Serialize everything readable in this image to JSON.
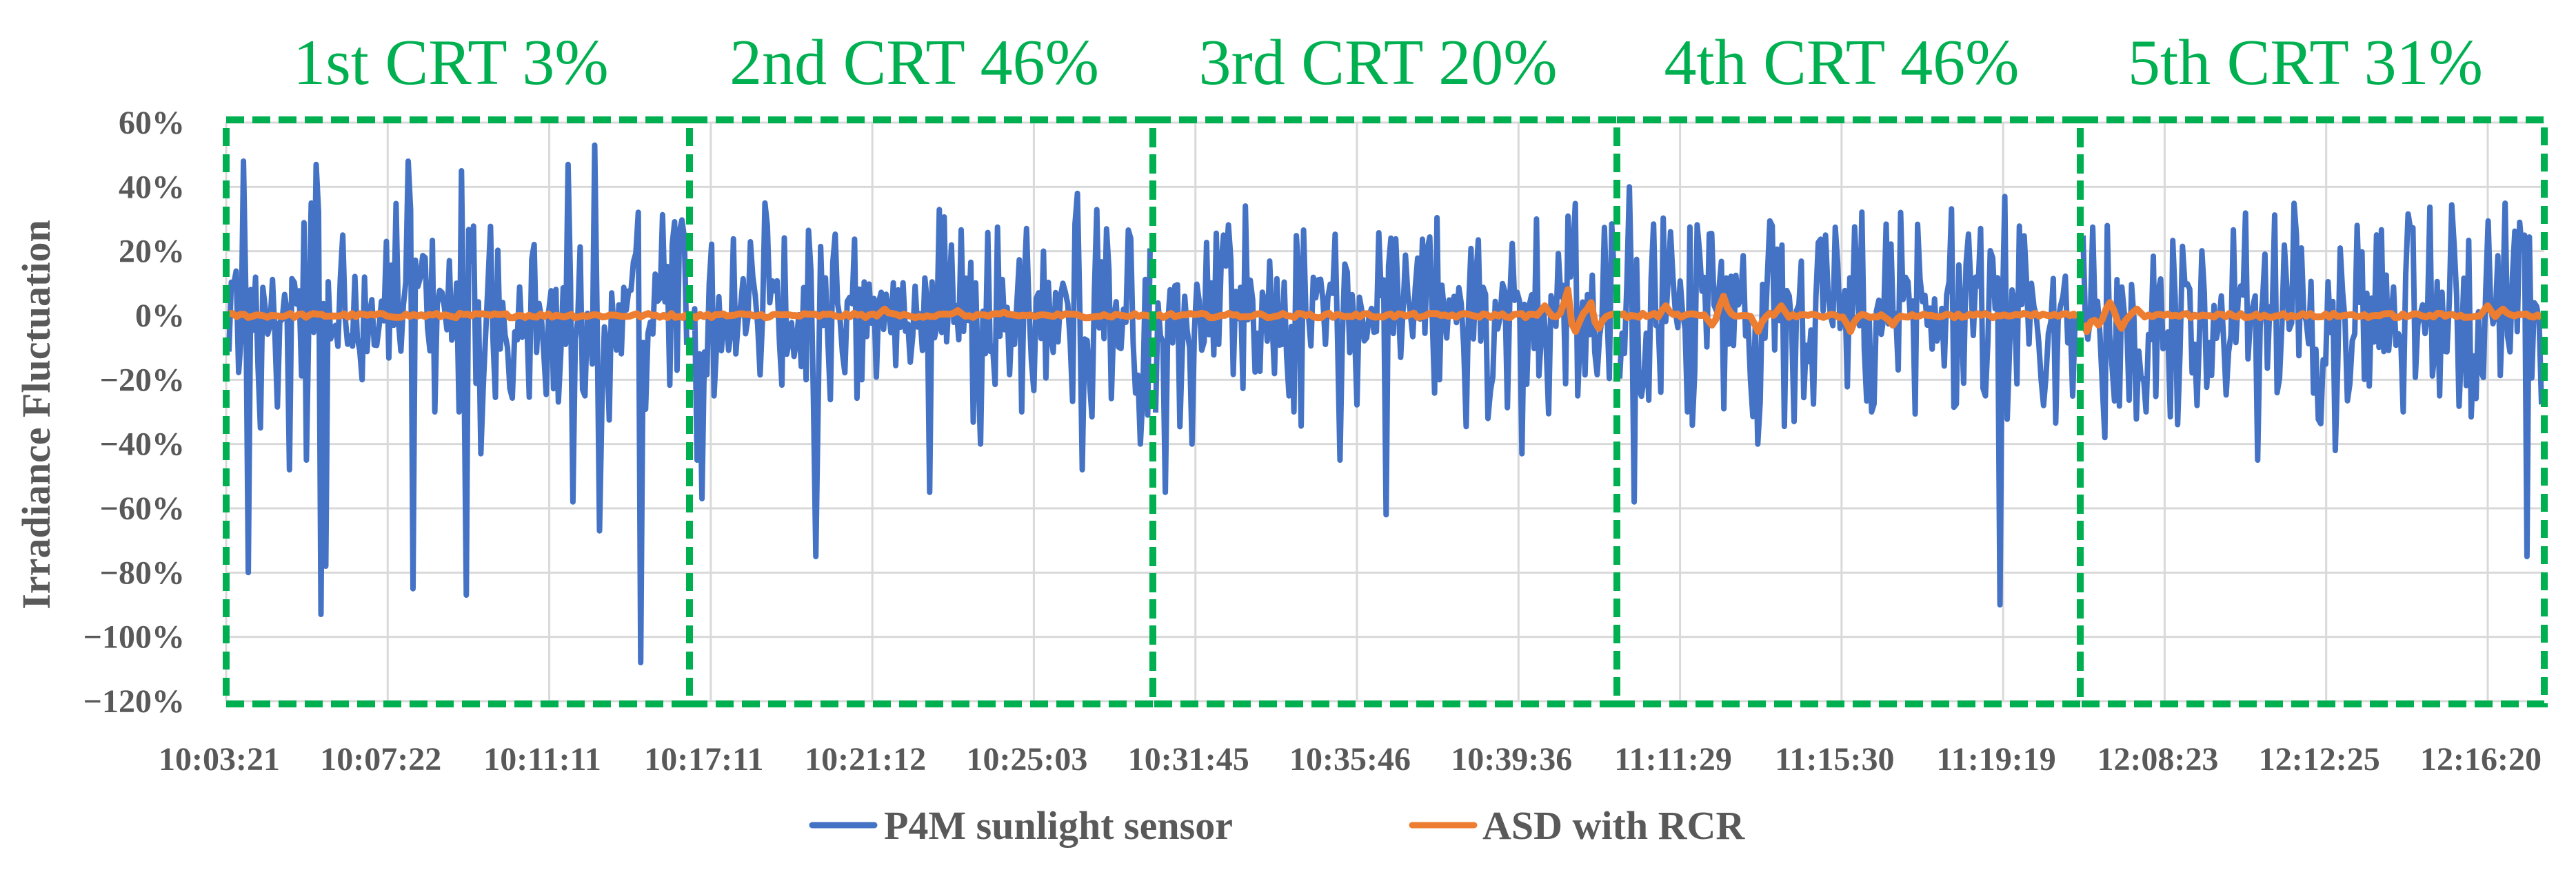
{
  "chart_data": {
    "type": "line",
    "title": "",
    "xlabel": "",
    "ylabel": "Irradiance Fluctuation",
    "ylim": [
      -120,
      60
    ],
    "y_unit": "%",
    "y_ticks": [
      "60%",
      "40%",
      "20%",
      "0%",
      "−20%",
      "−40%",
      "−60%",
      "−80%",
      "−100%",
      "−120%"
    ],
    "y_tick_values": [
      60,
      40,
      20,
      0,
      -20,
      -40,
      -60,
      -80,
      -100,
      -120
    ],
    "x_tick_labels": [
      "10:03:21",
      "10:07:22",
      "10:11:11",
      "10:17:11",
      "10:21:12",
      "10:25:03",
      "10:31:45",
      "10:35:46",
      "10:39:36",
      "11:11:29",
      "11:15:30",
      "11:19:19",
      "12:08:23",
      "12:12:25",
      "12:16:20"
    ],
    "grid": true,
    "legend_position": "bottom",
    "colors": {
      "P4M": "#4472c4",
      "ASD": "#ed7d31",
      "crt_box": "#00b050",
      "grid": "#d9d9d9"
    },
    "segments": [
      {
        "label": "1st CRT 3%",
        "crt_percent": 3,
        "p4m_spikes": [
          [
            0.03,
            48
          ],
          [
            0.04,
            -80
          ],
          [
            0.07,
            -35
          ],
          [
            0.13,
            -48
          ],
          [
            0.17,
            -45
          ],
          [
            0.18,
            35
          ],
          [
            0.19,
            47
          ],
          [
            0.2,
            -93
          ],
          [
            0.21,
            -78
          ],
          [
            0.25,
            25
          ],
          [
            0.39,
            48
          ],
          [
            0.4,
            -85
          ],
          [
            0.43,
            18
          ],
          [
            0.45,
            -30
          ],
          [
            0.5,
            -30
          ],
          [
            0.51,
            45
          ],
          [
            0.52,
            -87
          ],
          [
            0.55,
            -43
          ],
          [
            0.74,
            47
          ],
          [
            0.75,
            -58
          ],
          [
            0.78,
            -25
          ],
          [
            0.8,
            53
          ],
          [
            0.81,
            -67
          ],
          [
            0.9,
            33
          ],
          [
            0.9,
            -108
          ],
          [
            0.97,
            22
          ]
        ],
        "asd_bumps": []
      },
      {
        "label": "2nd CRT 46%",
        "crt_percent": 46,
        "p4m_spikes": [
          [
            0.01,
            -45
          ],
          [
            0.02,
            -57
          ],
          [
            0.05,
            -25
          ],
          [
            0.16,
            35
          ],
          [
            0.25,
            -20
          ],
          [
            0.27,
            30
          ],
          [
            0.27,
            -75
          ],
          [
            0.37,
            -20
          ],
          [
            0.52,
            -55
          ],
          [
            0.63,
            -40
          ],
          [
            0.72,
            -30
          ],
          [
            0.84,
            38
          ],
          [
            0.85,
            -48
          ],
          [
            0.96,
            24
          ],
          [
            0.98,
            -40
          ]
        ],
        "asd_bumps": [
          [
            0.42,
            2
          ],
          [
            0.58,
            1.5
          ],
          [
            0.68,
            1
          ]
        ]
      },
      {
        "label": "3rd CRT 20%",
        "crt_percent": 20,
        "p4m_spikes": [
          [
            0.02,
            -55
          ],
          [
            0.08,
            -40
          ],
          [
            0.15,
            25
          ],
          [
            0.3,
            -30
          ],
          [
            0.4,
            -45
          ],
          [
            0.5,
            -62
          ],
          [
            0.62,
            -20
          ],
          [
            0.8,
            -43
          ],
          [
            0.83,
            30
          ],
          [
            0.92,
            -25
          ]
        ],
        "asd_bumps": [
          [
            0.85,
            3
          ],
          [
            0.9,
            8
          ],
          [
            0.92,
            -5
          ],
          [
            0.95,
            4
          ],
          [
            0.97,
            -4
          ]
        ]
      },
      {
        "label": "4th CRT 46%",
        "crt_percent": 46,
        "p4m_spikes": [
          [
            0.02,
            40
          ],
          [
            0.03,
            -58
          ],
          [
            0.15,
            -30
          ],
          [
            0.3,
            -40
          ],
          [
            0.45,
            25
          ],
          [
            0.55,
            -30
          ],
          [
            0.8,
            -25
          ],
          [
            0.83,
            -90
          ],
          [
            0.84,
            37
          ],
          [
            0.92,
            -20
          ]
        ],
        "asd_bumps": [
          [
            0.1,
            3
          ],
          [
            0.2,
            -3
          ],
          [
            0.23,
            6
          ],
          [
            0.3,
            -5
          ],
          [
            0.35,
            3
          ],
          [
            0.5,
            -5
          ],
          [
            0.6,
            -3
          ]
        ]
      },
      {
        "label": "5th CRT 31%",
        "crt_percent": 31,
        "p4m_spikes": [
          [
            0.05,
            -38
          ],
          [
            0.14,
            -30
          ],
          [
            0.25,
            -28
          ],
          [
            0.38,
            -45
          ],
          [
            0.55,
            -42
          ],
          [
            0.7,
            -30
          ],
          [
            0.78,
            -25
          ],
          [
            0.95,
            29
          ],
          [
            0.97,
            -75
          ]
        ],
        "asd_bumps": [
          [
            0.01,
            -5
          ],
          [
            0.03,
            -3
          ],
          [
            0.06,
            4
          ],
          [
            0.08,
            -4
          ],
          [
            0.12,
            2
          ],
          [
            0.88,
            3
          ],
          [
            0.92,
            2
          ]
        ]
      }
    ],
    "series": [
      {
        "name": "P4M sunlight sensor",
        "color": "#4472c4"
      },
      {
        "name": "ASD with RCR",
        "color": "#ed7d31"
      }
    ]
  }
}
